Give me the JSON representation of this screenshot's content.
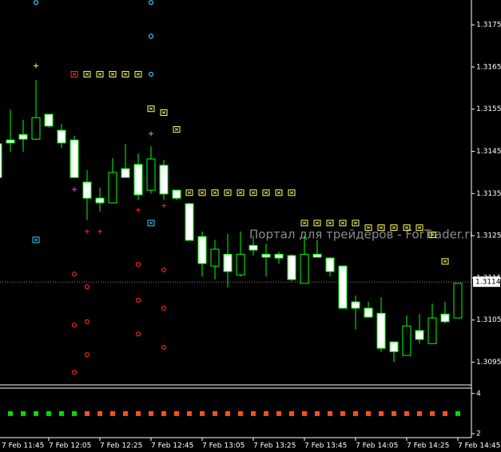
{
  "chart_data": [
    {
      "type": "candlestick",
      "watermark": "Портал для трейдеров - ForTrader.ru",
      "x": [
        "7 Feb 11:45",
        "7 Feb 11:50",
        "7 Feb 11:55",
        "7 Feb 12:00",
        "7 Feb 12:05",
        "7 Feb 12:10",
        "7 Feb 12:15",
        "7 Feb 12:20",
        "7 Feb 12:25",
        "7 Feb 12:30",
        "7 Feb 12:35",
        "7 Feb 12:40",
        "7 Feb 12:45",
        "7 Feb 12:50",
        "7 Feb 12:55",
        "7 Feb 13:00",
        "7 Feb 13:05",
        "7 Feb 13:10",
        "7 Feb 13:15",
        "7 Feb 13:20",
        "7 Feb 13:25",
        "7 Feb 13:30",
        "7 Feb 13:35",
        "7 Feb 13:40",
        "7 Feb 13:45",
        "7 Feb 13:50",
        "7 Feb 13:55",
        "7 Feb 14:00",
        "7 Feb 14:05",
        "7 Feb 14:10",
        "7 Feb 14:15",
        "7 Feb 14:20",
        "7 Feb 14:25",
        "7 Feb 14:30",
        "7 Feb 14:35",
        "7 Feb 14:40",
        "7 Feb 14:45"
      ],
      "open": [
        1.31468,
        1.31477,
        1.3149,
        1.31479,
        1.31538,
        1.315,
        1.31477,
        1.31377,
        1.31339,
        1.31328,
        1.31409,
        1.31419,
        1.31358,
        1.31417,
        1.31358,
        1.31326,
        1.31248,
        1.31178,
        1.31206,
        1.31157,
        1.31227,
        1.31206,
        1.31206,
        1.31203,
        1.31137,
        1.31206,
        1.31197,
        1.31178,
        1.31093,
        1.31078,
        1.31066,
        1.30998,
        1.30966,
        1.31025,
        1.30994,
        1.31064,
        1.31055
      ],
      "high": [
        1.31496,
        1.31549,
        1.31525,
        1.31619,
        1.31538,
        1.31515,
        1.31487,
        1.31405,
        1.31364,
        1.31434,
        1.31468,
        1.31445,
        1.31462,
        1.3143,
        1.31358,
        1.31328,
        1.3126,
        1.3124,
        1.31254,
        1.3126,
        1.3125,
        1.31231,
        1.31212,
        1.31206,
        1.3125,
        1.3124,
        1.31199,
        1.31178,
        1.31108,
        1.31093,
        1.31104,
        1.30998,
        1.31061,
        1.31064,
        1.31089,
        1.31093,
        1.31137
      ],
      "low": [
        1.31388,
        1.31449,
        1.31449,
        1.31477,
        1.31507,
        1.31458,
        1.31388,
        1.31288,
        1.31307,
        1.31328,
        1.31388,
        1.31335,
        1.3135,
        1.31335,
        1.31335,
        1.31239,
        1.31153,
        1.31146,
        1.31127,
        1.31153,
        1.31203,
        1.31153,
        1.31184,
        1.31142,
        1.31137,
        1.31199,
        1.31153,
        1.31078,
        1.31028,
        1.31055,
        1.30975,
        1.3095,
        1.30966,
        1.30994,
        1.30994,
        1.31042,
        1.31055
      ],
      "close": [
        1.31388,
        1.3147,
        1.31479,
        1.3153,
        1.3151,
        1.3147,
        1.31388,
        1.31339,
        1.31328,
        1.314,
        1.31388,
        1.31347,
        1.31432,
        1.31349,
        1.31339,
        1.31239,
        1.31184,
        1.31218,
        1.31165,
        1.31206,
        1.31216,
        1.31199,
        1.31197,
        1.31146,
        1.31206,
        1.31199,
        1.31165,
        1.31078,
        1.31078,
        1.31057,
        1.30983,
        1.30975,
        1.31036,
        1.31004,
        1.31055,
        1.31046,
        1.31137
      ],
      "up_color": "#00ff00",
      "bull_body": "#000000",
      "bear_body": "#ffffff",
      "current": 1.3114,
      "ylim": [
        1.30898,
        1.31809
      ],
      "yticks": [
        1.3175,
        1.3165,
        1.3155,
        1.3145,
        1.3135,
        1.3125,
        1.3115,
        1.3105,
        1.3095
      ],
      "markers": [
        {
          "shape": "box",
          "color": "#ffff66",
          "x": [
            "7 Feb 12:20",
            "7 Feb 12:25",
            "7 Feb 12:30",
            "7 Feb 12:35",
            "7 Feb 12:40",
            "7 Feb 12:45",
            "7 Feb 12:50",
            "7 Feb 12:55",
            "7 Feb 13:00",
            "7 Feb 13:05",
            "7 Feb 13:10",
            "7 Feb 13:15",
            "7 Feb 13:20",
            "7 Feb 13:25",
            "7 Feb 13:30",
            "7 Feb 13:35",
            "7 Feb 13:40",
            "7 Feb 13:45",
            "7 Feb 13:50",
            "7 Feb 13:55",
            "7 Feb 14:00",
            "7 Feb 14:05",
            "7 Feb 14:10",
            "7 Feb 14:15",
            "7 Feb 14:20",
            "7 Feb 14:25",
            "7 Feb 14:30",
            "7 Feb 14:35",
            "7 Feb 14:40"
          ],
          "values": [
            1.31633,
            1.31633,
            1.31633,
            1.31633,
            1.31633,
            1.31551,
            1.31542,
            1.31502,
            1.31352,
            1.31352,
            1.31352,
            1.31352,
            1.31352,
            1.31352,
            1.31352,
            1.31352,
            1.31352,
            1.3128,
            1.3128,
            1.3128,
            1.3128,
            1.3128,
            1.31269,
            1.31269,
            1.31269,
            1.31269,
            1.31269,
            1.31252,
            1.31189
          ]
        },
        {
          "shape": "box",
          "color": "#ff3030",
          "x": [
            "7 Feb 12:15"
          ],
          "values": [
            1.31633
          ]
        },
        {
          "shape": "box",
          "color": "#33ccff",
          "x": [
            "7 Feb 12:00",
            "7 Feb 12:45"
          ],
          "values": [
            1.3124,
            1.3128
          ]
        },
        {
          "shape": "ring",
          "color": "#33ccff",
          "x": [
            "7 Feb 12:00",
            "7 Feb 12:45",
            "7 Feb 12:45",
            "7 Feb 12:45"
          ],
          "values": [
            1.31803,
            1.31803,
            1.31723,
            1.31633
          ]
        },
        {
          "shape": "plus",
          "color": "#33ccff",
          "x": [
            "7 Feb 12:45"
          ],
          "values": [
            1.31492
          ]
        },
        {
          "shape": "plus",
          "color": "#ffff33",
          "x": [
            "7 Feb 12:00"
          ],
          "values": [
            1.31653
          ]
        },
        {
          "shape": "plus",
          "color": "#ff33ff",
          "x": [
            "7 Feb 12:15"
          ],
          "values": [
            1.3136
          ]
        },
        {
          "shape": "plus",
          "color": "#ff2020",
          "x": [
            "7 Feb 12:20",
            "7 Feb 12:25",
            "7 Feb 12:40",
            "7 Feb 12:50"
          ],
          "values": [
            1.3126,
            1.3126,
            1.31311,
            1.31321
          ]
        },
        {
          "shape": "ring",
          "color": "#ff2020",
          "x": [
            "7 Feb 12:15",
            "7 Feb 12:15",
            "7 Feb 12:15",
            "7 Feb 12:20",
            "7 Feb 12:20",
            "7 Feb 12:20",
            "7 Feb 12:40",
            "7 Feb 12:40",
            "7 Feb 12:40",
            "7 Feb 12:50",
            "7 Feb 12:50",
            "7 Feb 12:50"
          ],
          "values": [
            1.31159,
            1.31038,
            1.30926,
            1.31129,
            1.31046,
            1.30968,
            1.31182,
            1.31097,
            1.31017,
            1.31169,
            1.31078,
            1.30985
          ]
        }
      ]
    },
    {
      "type": "dots",
      "values": [
        null,
        3,
        3,
        3,
        3,
        3,
        3,
        3,
        3,
        3,
        3,
        3,
        3,
        3,
        3,
        3,
        3,
        3,
        3,
        3,
        3,
        3,
        3,
        3,
        3,
        3,
        3,
        3,
        3,
        3,
        3,
        3,
        3,
        3,
        3,
        3,
        3
      ],
      "colors": [
        null,
        "#00dd00",
        "#00dd00",
        "#00dd00",
        "#00dd00",
        "#00dd00",
        "#00dd00",
        "#ff5020",
        "#ff5020",
        "#ff5020",
        "#ff5020",
        "#ff5020",
        "#ff5020",
        "#ff5020",
        "#ff5020",
        "#ff5020",
        "#ff5020",
        "#ff5020",
        "#ff5020",
        "#ff5020",
        "#ff5020",
        "#ff5020",
        "#ff5020",
        "#ff5020",
        "#ff5020",
        "#ff5020",
        "#ff5020",
        "#ff5020",
        "#ff5020",
        "#ff5020",
        "#ff5020",
        "#ff5020",
        "#ff5020",
        "#ff5020",
        "#ff5020",
        "#ff5020",
        "#00dd00"
      ],
      "ylim": [
        1.8,
        4.27
      ],
      "yticks": [
        4,
        2
      ]
    }
  ]
}
